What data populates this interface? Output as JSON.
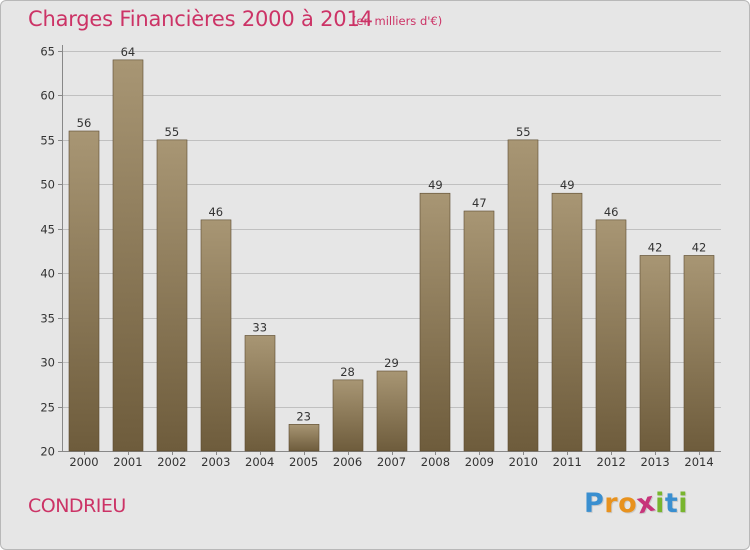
{
  "title": "Charges Financières 2000 à 2014",
  "subtitle": "(en milliers d'€)",
  "city": "CONDRIEU",
  "logo": {
    "letters": [
      "P",
      "r",
      "o",
      "x",
      "i",
      "t",
      "i"
    ],
    "colors": [
      "#3a8fd0",
      "#e8921e",
      "#e8921e",
      "#c7347a",
      "#78b52e",
      "#3a8fd0",
      "#78b52e"
    ]
  },
  "colors": {
    "title": "#cc3366",
    "bar_top": "#a89674",
    "bar_bottom": "#6e5c3c",
    "background": "#e6e6e6",
    "grid": "#c0c0c0"
  },
  "chart_data": {
    "type": "bar",
    "categories": [
      "2000",
      "2001",
      "2002",
      "2003",
      "2004",
      "2005",
      "2006",
      "2007",
      "2008",
      "2009",
      "2010",
      "2011",
      "2012",
      "2013",
      "2014"
    ],
    "values": [
      56,
      64,
      55,
      46,
      33,
      23,
      28,
      29,
      49,
      47,
      55,
      49,
      46,
      42,
      42
    ],
    "data_labels": [
      "56",
      "64",
      "55",
      "46",
      "33",
      "23",
      "28",
      "29",
      "49",
      "47",
      "55",
      "49",
      "46",
      "42",
      "42"
    ],
    "yticks": [
      20,
      25,
      30,
      35,
      40,
      45,
      50,
      55,
      60,
      65
    ],
    "ytick_labels": [
      "20",
      "25",
      "30",
      "35",
      "40",
      "45",
      "50",
      "55",
      "60",
      "65"
    ],
    "ylim": [
      20,
      65
    ],
    "title": "Charges Financières 2000 à 2014",
    "xlabel": "",
    "ylabel": "",
    "grid": true,
    "legend": "none"
  }
}
